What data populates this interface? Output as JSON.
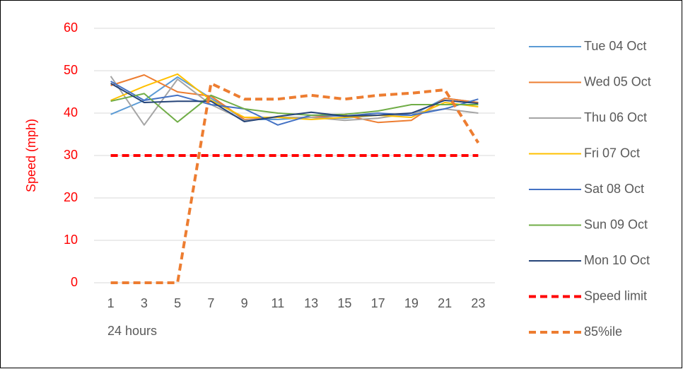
{
  "chart_data": {
    "type": "line",
    "y_label": "Speed (mph)",
    "x_label": "24 hours",
    "categories": [
      "1",
      "3",
      "5",
      "7",
      "9",
      "11",
      "13",
      "15",
      "17",
      "19",
      "21",
      "23"
    ],
    "ylim": [
      0,
      60
    ],
    "yticks": [
      0,
      10,
      20,
      30,
      40,
      50,
      60
    ],
    "grid": true,
    "legend": "right",
    "series": [
      {
        "name": "Tue 04 Oct",
        "color": "#5b9bd5",
        "dashed": false,
        "values": [
          39.7,
          43,
          48.5,
          43.5,
          38.5,
          38.5,
          39,
          38.8,
          39.5,
          39.5,
          43.5,
          42.5
        ]
      },
      {
        "name": "Wed 05 Oct",
        "color": "#ed7d31",
        "dashed": false,
        "values": [
          46.5,
          49,
          45,
          44,
          38.5,
          39,
          39,
          39.5,
          37.8,
          38.3,
          43.5,
          42.5
        ]
      },
      {
        "name": "Thu 06 Oct",
        "color": "#a5a5a5",
        "dashed": false,
        "values": [
          48.7,
          37.2,
          48,
          42,
          38.3,
          39,
          39,
          38.3,
          38.8,
          40,
          41,
          40
        ]
      },
      {
        "name": "Fri 07 Oct",
        "color": "#ffc000",
        "dashed": false,
        "values": [
          43,
          46.3,
          49.2,
          43,
          39,
          39,
          38.5,
          39,
          39.5,
          39,
          42.5,
          41.5
        ]
      },
      {
        "name": "Sat 08 Oct",
        "color": "#4472c4",
        "dashed": false,
        "values": [
          47.5,
          43,
          44.2,
          42,
          41,
          37.2,
          39.5,
          39.3,
          40,
          39.5,
          41,
          43.3
        ]
      },
      {
        "name": "Sun 09 Oct",
        "color": "#70ad47",
        "dashed": false,
        "values": [
          42.8,
          44.6,
          37.9,
          44.2,
          41,
          40,
          39.5,
          39.7,
          40.5,
          42,
          42,
          42
        ]
      },
      {
        "name": "Mon 10 Oct",
        "color": "#264478",
        "dashed": false,
        "values": [
          47,
          42.5,
          42.8,
          42.8,
          38,
          39.2,
          40.2,
          39.3,
          39.5,
          40,
          43,
          42.3
        ]
      },
      {
        "name": "Speed limit",
        "color": "#ff0000",
        "dashed": true,
        "values": [
          30,
          30,
          30,
          30,
          30,
          30,
          30,
          30,
          30,
          30,
          30,
          30
        ]
      },
      {
        "name": "85%ile",
        "color": "#ed7d31",
        "dashed": true,
        "values": [
          0,
          0,
          0,
          47,
          43.3,
          43.3,
          44.2,
          43.3,
          44.2,
          44.7,
          45.5,
          33
        ]
      }
    ]
  }
}
